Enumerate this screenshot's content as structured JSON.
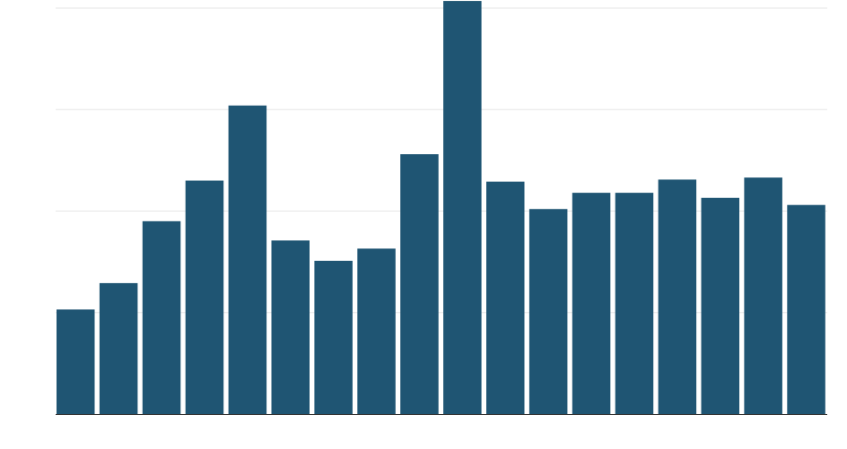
{
  "chart_data": {
    "type": "bar",
    "title": "",
    "xlabel": "",
    "ylabel": "",
    "ylim": [
      0,
      4
    ],
    "grid": true,
    "categories": [
      "",
      "",
      "",
      "",
      "",
      "",
      "",
      "",
      "",
      "",
      "",
      "",
      "",
      "",
      "",
      "",
      "",
      ""
    ],
    "values": [
      1.03,
      1.29,
      1.9,
      2.3,
      3.04,
      1.71,
      1.51,
      1.63,
      2.56,
      4.07,
      2.29,
      2.02,
      2.18,
      2.18,
      2.31,
      2.13,
      2.33,
      2.06
    ],
    "colors": {
      "bar": "#1f5573",
      "grid": "#e6e6e6",
      "axis": "#333333"
    }
  }
}
